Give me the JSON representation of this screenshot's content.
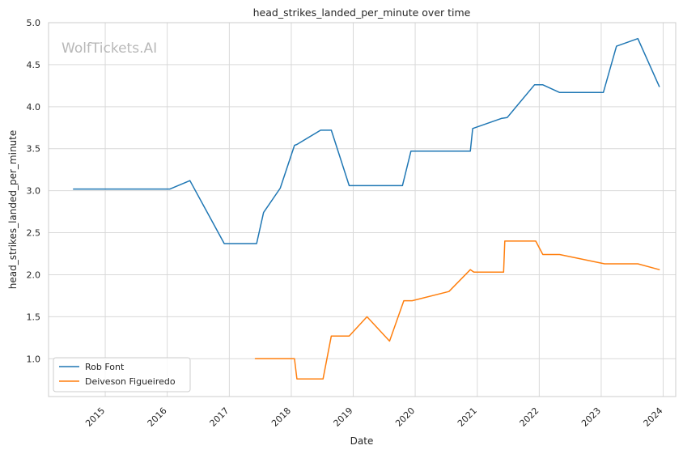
{
  "chart_data": {
    "type": "line",
    "title": "head_strikes_landed_per_minute over time",
    "xlabel": "Date",
    "ylabel": "head_strikes_landed_per_minute",
    "watermark": "WolfTickets.AI",
    "x_ticks": [
      "2015",
      "2016",
      "2017",
      "2018",
      "2019",
      "2020",
      "2021",
      "2022",
      "2023",
      "2024"
    ],
    "y_ticks": [
      "1.0",
      "1.5",
      "2.0",
      "2.5",
      "3.0",
      "3.5",
      "4.0",
      "4.5",
      "5.0"
    ],
    "xlim": [
      "2014-02-01",
      "2024-03-15"
    ],
    "ylim": [
      0.55,
      5.0
    ],
    "grid": true,
    "legend_position": "lower-left",
    "series": [
      {
        "name": "Rob Font",
        "color": "#1f77b4",
        "points": [
          [
            "2014-06-28",
            3.02
          ],
          [
            "2016-01-17",
            3.02
          ],
          [
            "2016-05-14",
            3.12
          ],
          [
            "2016-12-02",
            2.37
          ],
          [
            "2017-06-11",
            2.37
          ],
          [
            "2017-07-22",
            2.74
          ],
          [
            "2017-10-28",
            3.03
          ],
          [
            "2018-01-20",
            3.54
          ],
          [
            "2018-02-03",
            3.55
          ],
          [
            "2018-06-23",
            3.72
          ],
          [
            "2018-08-25",
            3.72
          ],
          [
            "2018-12-08",
            3.06
          ],
          [
            "2019-10-18",
            3.06
          ],
          [
            "2019-12-07",
            3.47
          ],
          [
            "2020-11-21",
            3.47
          ],
          [
            "2020-12-05",
            3.74
          ],
          [
            "2021-05-22",
            3.86
          ],
          [
            "2021-06-26",
            3.87
          ],
          [
            "2021-12-04",
            4.26
          ],
          [
            "2022-01-22",
            4.26
          ],
          [
            "2022-04-30",
            4.17
          ],
          [
            "2023-01-14",
            4.17
          ],
          [
            "2023-04-01",
            4.72
          ],
          [
            "2023-08-05",
            4.81
          ],
          [
            "2023-12-09",
            4.24
          ]
        ]
      },
      {
        "name": "Deiveson Figueiredo",
        "color": "#ff7f0e",
        "points": [
          [
            "2017-06-03",
            1.0
          ],
          [
            "2018-01-20",
            1.0
          ],
          [
            "2018-02-03",
            0.76
          ],
          [
            "2018-07-07",
            0.76
          ],
          [
            "2018-08-25",
            1.27
          ],
          [
            "2018-12-08",
            1.27
          ],
          [
            "2019-03-23",
            1.5
          ],
          [
            "2019-08-03",
            1.21
          ],
          [
            "2019-10-26",
            1.69
          ],
          [
            "2019-12-14",
            1.69
          ],
          [
            "2020-07-18",
            1.8
          ],
          [
            "2020-11-21",
            2.06
          ],
          [
            "2020-12-12",
            2.03
          ],
          [
            "2021-06-05",
            2.03
          ],
          [
            "2021-06-12",
            2.4
          ],
          [
            "2021-12-11",
            2.4
          ],
          [
            "2022-01-22",
            2.24
          ],
          [
            "2022-05-01",
            2.24
          ],
          [
            "2023-01-21",
            2.13
          ],
          [
            "2023-08-05",
            2.13
          ],
          [
            "2023-12-09",
            2.06
          ]
        ]
      }
    ]
  }
}
